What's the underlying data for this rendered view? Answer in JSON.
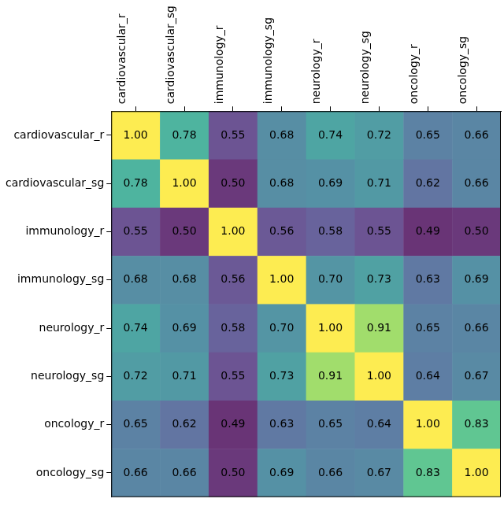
{
  "chart_data": {
    "type": "heatmap",
    "x_categories": [
      "cardiovascular_r",
      "cardiovascular_sg",
      "immunology_r",
      "immunology_sg",
      "neurology_r",
      "neurology_sg",
      "oncology_r",
      "oncology_sg"
    ],
    "y_categories": [
      "cardiovascular_r",
      "cardiovascular_sg",
      "immunology_r",
      "immunology_sg",
      "neurology_r",
      "neurology_sg",
      "oncology_r",
      "oncology_sg"
    ],
    "cells": [
      [
        1.0,
        0.78,
        0.55,
        0.68,
        0.74,
        0.72,
        0.65,
        0.66
      ],
      [
        0.78,
        1.0,
        0.5,
        0.68,
        0.69,
        0.71,
        0.62,
        0.66
      ],
      [
        0.55,
        0.5,
        1.0,
        0.56,
        0.58,
        0.55,
        0.49,
        0.5
      ],
      [
        0.68,
        0.68,
        0.56,
        1.0,
        0.7,
        0.73,
        0.63,
        0.69
      ],
      [
        0.74,
        0.69,
        0.58,
        0.7,
        1.0,
        0.91,
        0.65,
        0.66
      ],
      [
        0.72,
        0.71,
        0.55,
        0.73,
        0.91,
        1.0,
        0.64,
        0.67
      ],
      [
        0.65,
        0.62,
        0.49,
        0.63,
        0.65,
        0.64,
        1.0,
        0.83
      ],
      [
        0.66,
        0.66,
        0.5,
        0.69,
        0.66,
        0.67,
        0.83,
        1.0
      ]
    ],
    "value_labels": [
      [
        "1.00",
        "0.78",
        "0.55",
        "0.68",
        "0.74",
        "0.72",
        "0.65",
        "0.66"
      ],
      [
        "0.78",
        "1.00",
        "0.50",
        "0.68",
        "0.69",
        "0.71",
        "0.62",
        "0.66"
      ],
      [
        "0.55",
        "0.50",
        "1.00",
        "0.56",
        "0.58",
        "0.55",
        "0.49",
        "0.50"
      ],
      [
        "0.68",
        "0.68",
        "0.56",
        "1.00",
        "0.70",
        "0.73",
        "0.63",
        "0.69"
      ],
      [
        "0.74",
        "0.69",
        "0.58",
        "0.70",
        "1.00",
        "0.91",
        "0.65",
        "0.66"
      ],
      [
        "0.72",
        "0.71",
        "0.55",
        "0.73",
        "0.91",
        "1.00",
        "0.64",
        "0.67"
      ],
      [
        "0.65",
        "0.62",
        "0.49",
        "0.63",
        "0.65",
        "0.64",
        "1.00",
        "0.83"
      ],
      [
        "0.66",
        "0.66",
        "0.50",
        "0.69",
        "0.66",
        "0.67",
        "0.83",
        "1.00"
      ]
    ],
    "data_labels": true,
    "grid": false
  }
}
